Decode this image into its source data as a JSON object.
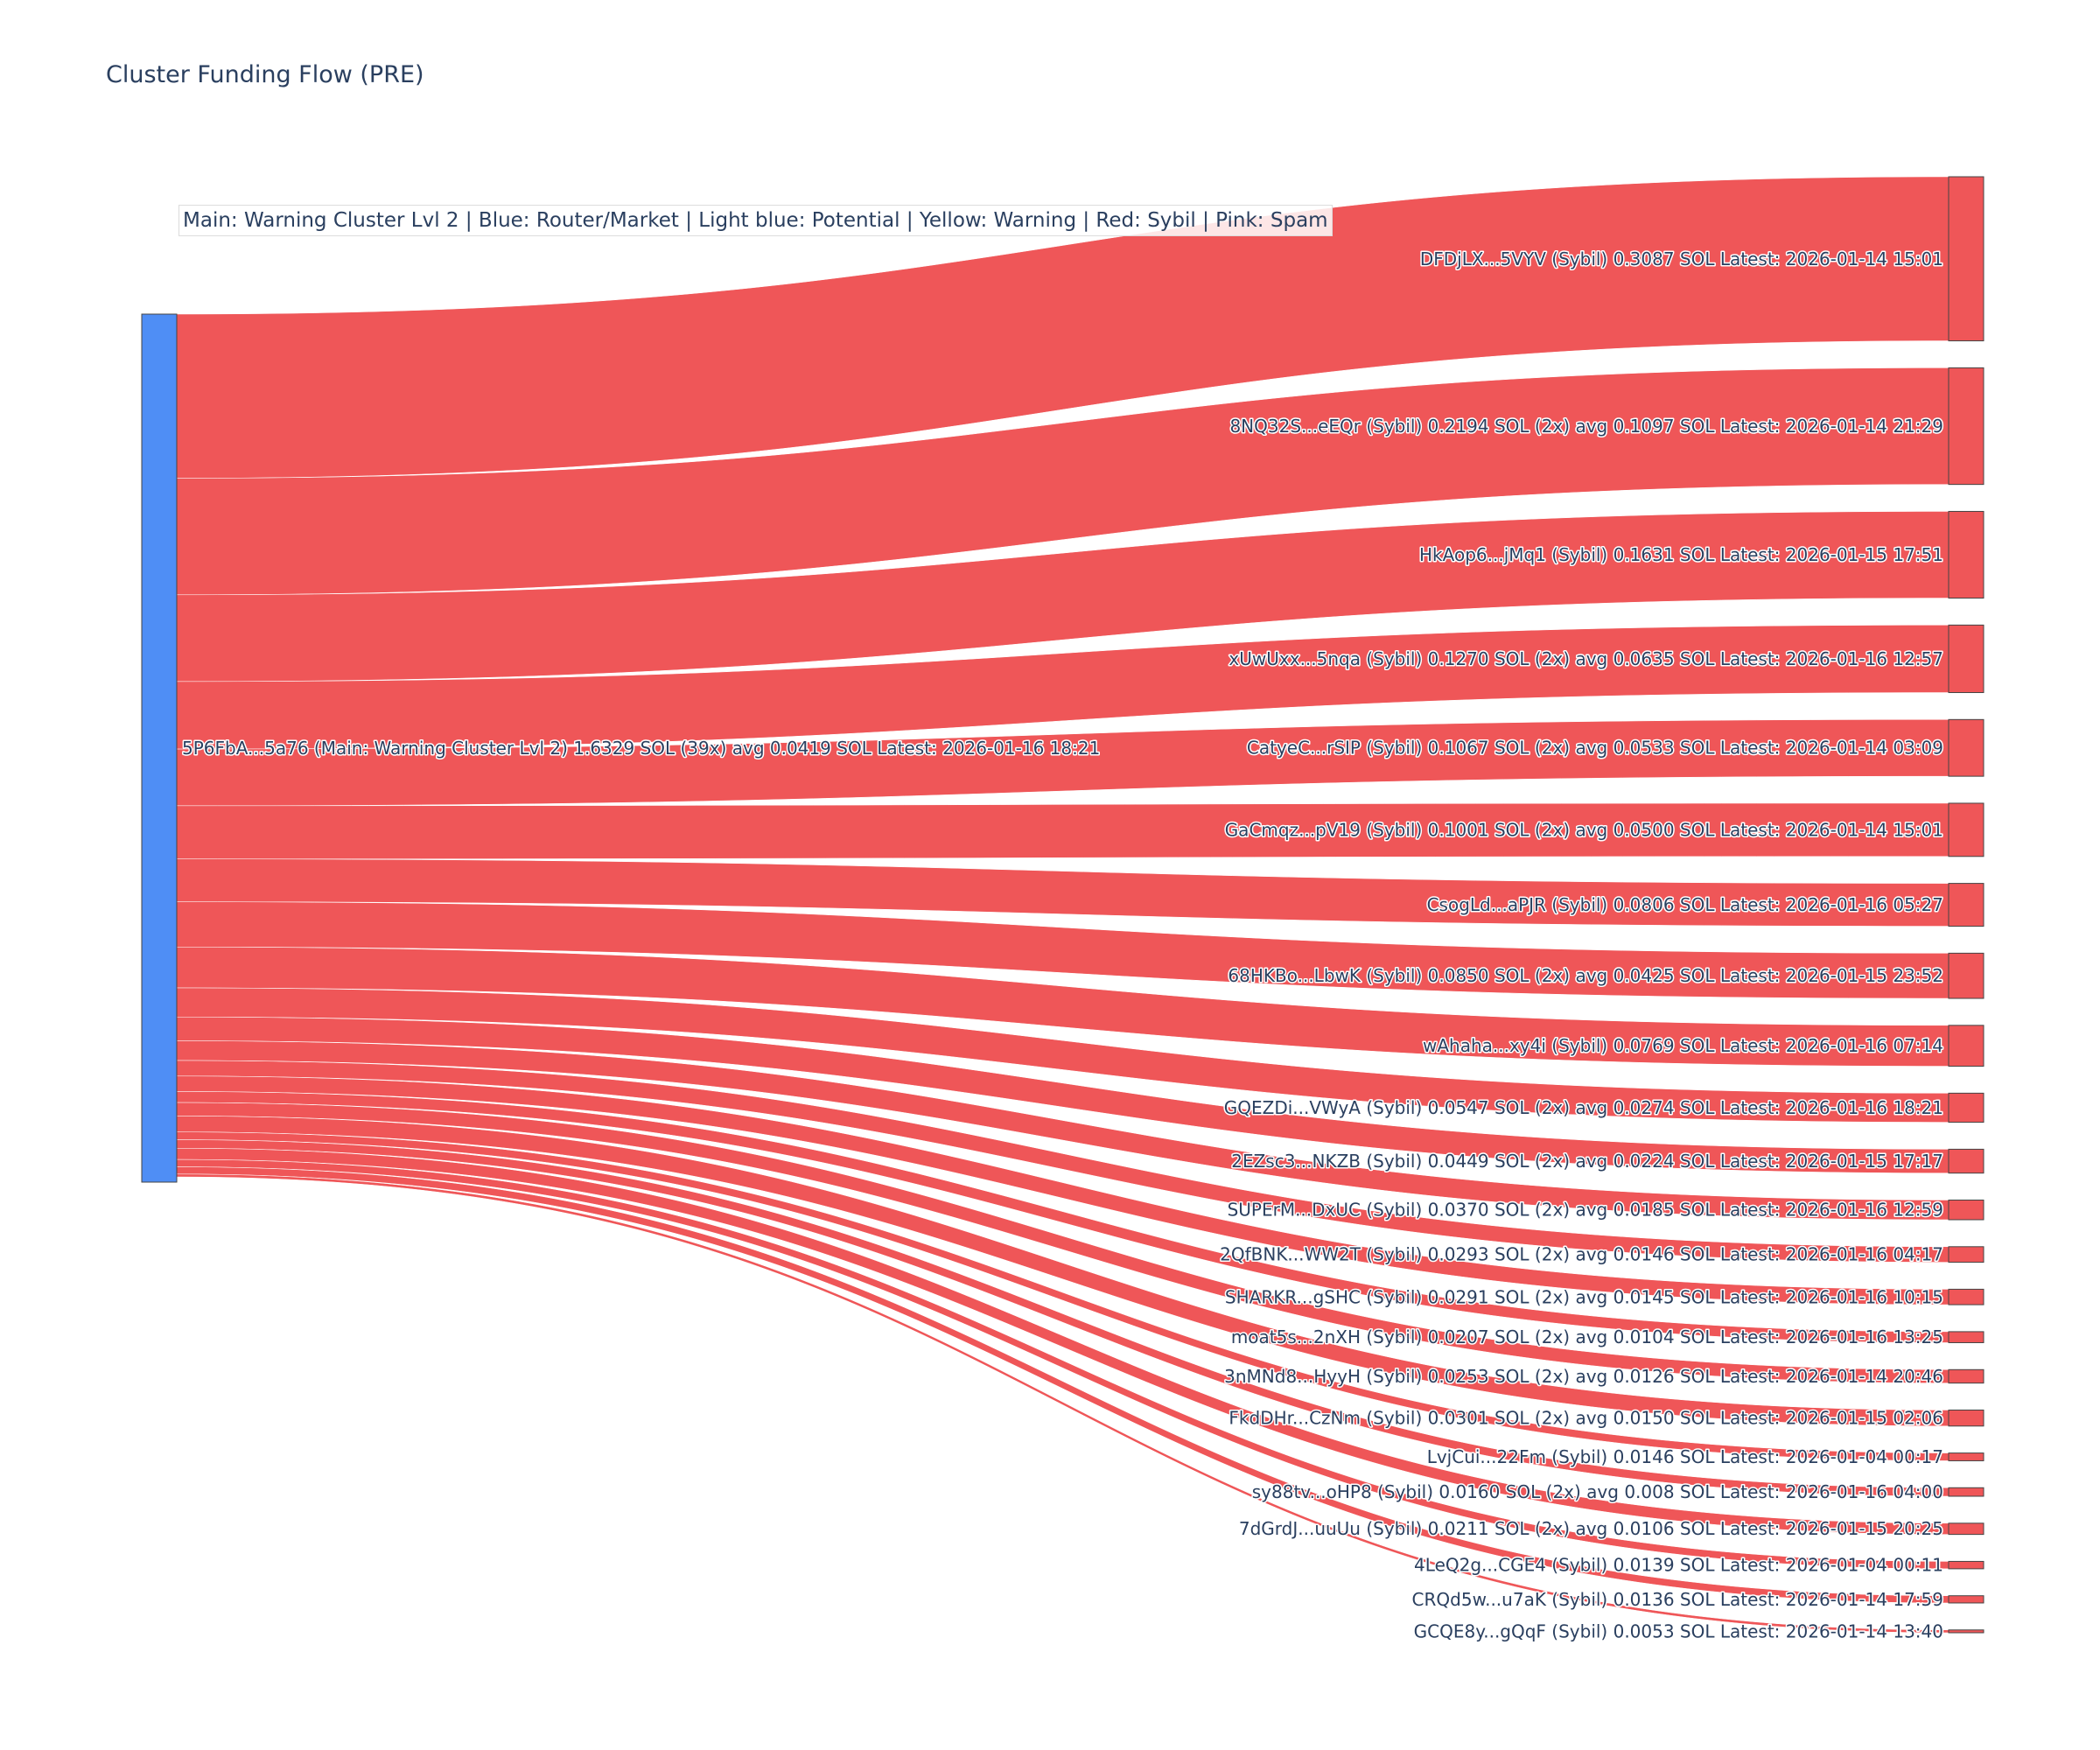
{
  "chart_data": {
    "type": "sankey",
    "title": "Cluster Funding Flow (PRE)",
    "legend_note": "Main: Warning Cluster Lvl 2  |  Blue: Router/Market | Light blue: Potential | Yellow: Warning | Red: Sybil | Pink: Spam",
    "colors": {
      "source_node": "#4f8ef5",
      "sybil_node": "#ef5658",
      "link": "#ef5658",
      "node_border": "#444444"
    },
    "source": {
      "label": "5P6FbA...5a76 (Main: Warning Cluster Lvl 2) 1.6329 SOL (39x) avg 0.0419 SOL Latest: 2026-01-16 18:21",
      "value": 1.6329
    },
    "targets": [
      {
        "label": "DFDjLX...5VYV (Sybil) 0.3087 SOL Latest: 2026-01-14 15:01",
        "value": 0.3087
      },
      {
        "label": "8NQ32S...eEQr (Sybil) 0.2194 SOL (2x) avg 0.1097 SOL Latest: 2026-01-14 21:29",
        "value": 0.2194
      },
      {
        "label": "HkAop6...jMq1 (Sybil) 0.1631 SOL Latest: 2026-01-15 17:51",
        "value": 0.1631
      },
      {
        "label": "xUwUxx...5nqa (Sybil) 0.1270 SOL (2x) avg 0.0635 SOL Latest: 2026-01-16 12:57",
        "value": 0.127
      },
      {
        "label": "CatyeC...rSIP (Sybil) 0.1067 SOL (2x) avg 0.0533 SOL Latest: 2026-01-14 03:09",
        "value": 0.1067
      },
      {
        "label": "GaCmqz...pV19 (Sybil) 0.1001 SOL (2x) avg 0.0500 SOL Latest: 2026-01-14 15:01",
        "value": 0.1001
      },
      {
        "label": "CsogLd...aPJR (Sybil) 0.0806 SOL Latest: 2026-01-16 05:27",
        "value": 0.0806
      },
      {
        "label": "68HKBo...LbwK (Sybil) 0.0850 SOL (2x) avg 0.0425 SOL Latest: 2026-01-15 23:52",
        "value": 0.085
      },
      {
        "label": "wAhaha...xy4i (Sybil) 0.0769 SOL Latest: 2026-01-16 07:14",
        "value": 0.0769
      },
      {
        "label": "GQEZDi...VWyA (Sybil) 0.0547 SOL (2x) avg 0.0274 SOL Latest: 2026-01-16 18:21",
        "value": 0.0547
      },
      {
        "label": "2EZsc3...NKZB (Sybil) 0.0449 SOL (2x) avg 0.0224 SOL Latest: 2026-01-15 17:17",
        "value": 0.0449
      },
      {
        "label": "SUPErM...DxUC (Sybil) 0.0370 SOL (2x) avg 0.0185 SOL Latest: 2026-01-16 12:59",
        "value": 0.037
      },
      {
        "label": "2QfBNK...WW2T (Sybil) 0.0293 SOL (2x) avg 0.0146 SOL Latest: 2026-01-16 04:17",
        "value": 0.0293
      },
      {
        "label": "SHARKR...gSHC (Sybil) 0.0291 SOL (2x) avg 0.0145 SOL Latest: 2026-01-16 10:15",
        "value": 0.0291
      },
      {
        "label": "moat5s...2nXH (Sybil) 0.0207 SOL (2x) avg 0.0104 SOL Latest: 2026-01-16 13:25",
        "value": 0.0207
      },
      {
        "label": "3nMNd8...HyyH (Sybil) 0.0253 SOL (2x) avg 0.0126 SOL Latest: 2026-01-14 20:46",
        "value": 0.0253
      },
      {
        "label": "FkdDHr...CzNm (Sybil) 0.0301 SOL (2x) avg 0.0150 SOL Latest: 2026-01-15 02:06",
        "value": 0.0301
      },
      {
        "label": "LvjCui...22Fm (Sybil) 0.0146 SOL Latest: 2026-01-04 00:17",
        "value": 0.0146
      },
      {
        "label": "sy88tv...oHP8 (Sybil) 0.0160 SOL (2x) avg 0.008 SOL Latest: 2026-01-16 04:00",
        "value": 0.016
      },
      {
        "label": "7dGrdJ...uuUu (Sybil) 0.0211 SOL (2x) avg 0.0106 SOL Latest: 2026-01-15 20:25",
        "value": 0.0211
      },
      {
        "label": "4LeQ2g...CGE4 (Sybil) 0.0139 SOL Latest: 2026-01-04 00:11",
        "value": 0.0139
      },
      {
        "label": "CRQd5w...u7aK (Sybil) 0.0136 SOL Latest: 2026-01-14 17:59",
        "value": 0.0136
      },
      {
        "label": "GCQE8y...gQqF (Sybil) 0.0053 SOL Latest: 2026-01-14 13:40",
        "value": 0.0053
      }
    ]
  }
}
